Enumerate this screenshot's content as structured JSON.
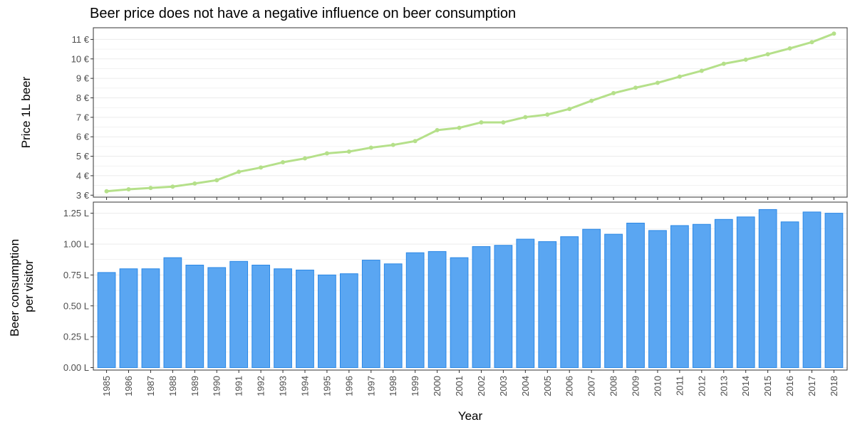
{
  "title": "Beer price does not have a negative influence on beer consumption",
  "colors": {
    "line": "#b5e08a",
    "bar_fill": "#5aa6f2",
    "bar_stroke": "#2b88e6",
    "grid": "#ebebeb",
    "panel_border": "#333333",
    "tick_text": "#4d4d4d"
  },
  "chart_data": [
    {
      "type": "line",
      "ylabel": "Price 1L beer",
      "ylim": [
        2.9,
        11.6
      ],
      "y_ticks": [
        3,
        4,
        5,
        6,
        7,
        8,
        9,
        10,
        11
      ],
      "y_tick_labels": [
        "3 €",
        "4 €",
        "5 €",
        "6 €",
        "7 €",
        "8 €",
        "9 €",
        "10 €",
        "11 €"
      ],
      "grid": true,
      "x": [
        "1985",
        "1986",
        "1987",
        "1988",
        "1989",
        "1990",
        "1991",
        "1992",
        "1993",
        "1994",
        "1995",
        "1996",
        "1997",
        "1998",
        "1999",
        "2000",
        "2001",
        "2002",
        "2003",
        "2004",
        "2005",
        "2006",
        "2007",
        "2008",
        "2009",
        "2010",
        "2011",
        "2012",
        "2013",
        "2014",
        "2015",
        "2016",
        "2017",
        "2018"
      ],
      "values": [
        3.2,
        3.3,
        3.37,
        3.44,
        3.6,
        3.77,
        4.2,
        4.42,
        4.69,
        4.89,
        5.15,
        5.24,
        5.44,
        5.58,
        5.78,
        6.34,
        6.46,
        6.74,
        6.74,
        7.01,
        7.14,
        7.43,
        7.85,
        8.24,
        8.52,
        8.77,
        9.09,
        9.39,
        9.75,
        9.96,
        10.24,
        10.54,
        10.86,
        11.3
      ]
    },
    {
      "type": "bar",
      "xlabel": "Year",
      "ylabel_lines": [
        "Beer consumption",
        "per visitor"
      ],
      "ylim": [
        -0.02,
        1.34
      ],
      "y_ticks": [
        0,
        0.25,
        0.5,
        0.75,
        1.0,
        1.25
      ],
      "y_tick_labels": [
        "0.00 L",
        "0.25 L",
        "0.50 L",
        "0.75 L",
        "1.00 L",
        "1.25 L"
      ],
      "grid": true,
      "categories": [
        "1985",
        "1986",
        "1987",
        "1988",
        "1989",
        "1990",
        "1991",
        "1992",
        "1993",
        "1994",
        "1995",
        "1996",
        "1997",
        "1998",
        "1999",
        "2000",
        "2001",
        "2002",
        "2003",
        "2004",
        "2005",
        "2006",
        "2007",
        "2008",
        "2009",
        "2010",
        "2011",
        "2012",
        "2013",
        "2014",
        "2015",
        "2016",
        "2017",
        "2018"
      ],
      "values": [
        0.77,
        0.8,
        0.8,
        0.89,
        0.83,
        0.81,
        0.86,
        0.83,
        0.8,
        0.79,
        0.75,
        0.76,
        0.87,
        0.84,
        0.93,
        0.94,
        0.89,
        0.98,
        0.99,
        1.04,
        1.02,
        1.06,
        1.12,
        1.08,
        1.17,
        1.11,
        1.15,
        1.16,
        1.2,
        1.22,
        1.28,
        1.18,
        1.26,
        1.25
      ]
    }
  ]
}
